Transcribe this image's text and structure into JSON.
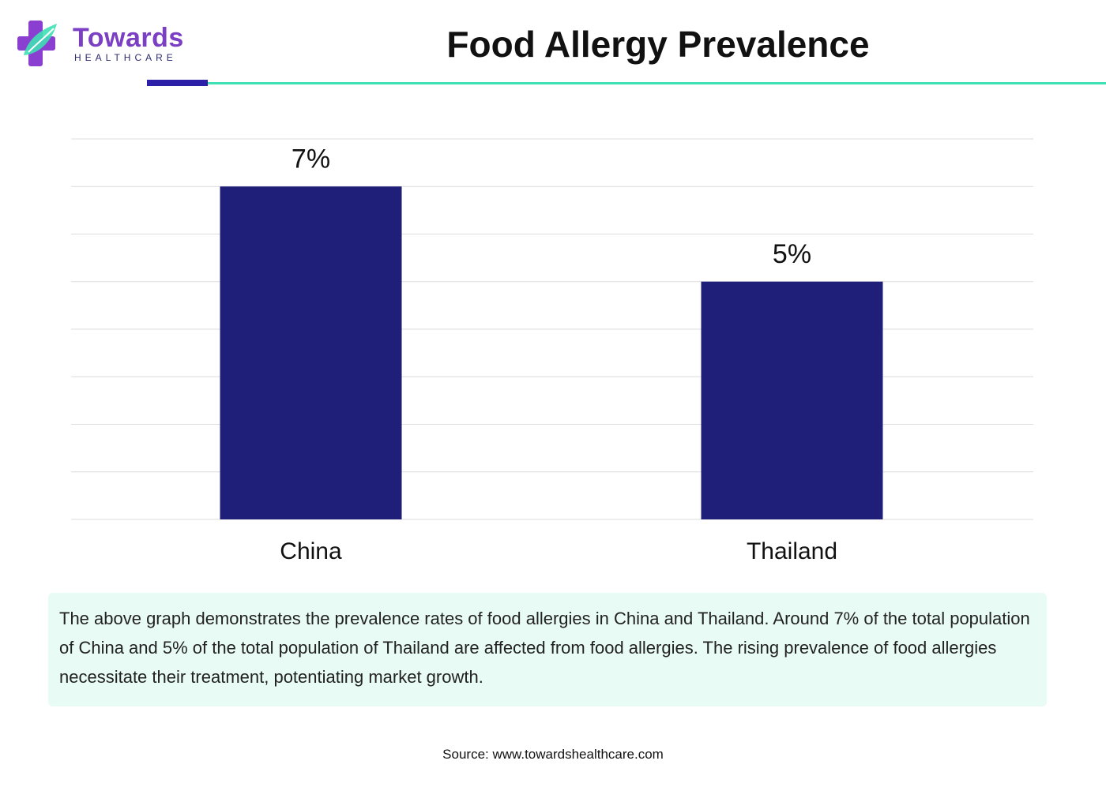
{
  "brand": {
    "name": "Towards",
    "subtitle": "HEALTHCARE",
    "colors": {
      "purple": "#7b3fc4",
      "teal": "#3ee0b4",
      "navy": "#2c1fa8"
    }
  },
  "chart_data": {
    "type": "bar",
    "title": "Food Allergy Prevalence",
    "categories": [
      "China",
      "Thailand"
    ],
    "values": [
      7,
      5
    ],
    "value_labels": [
      "7%",
      "5%"
    ],
    "unit": "%",
    "ylim": [
      0,
      8
    ],
    "grid": true,
    "bar_color": "#1f1f7a",
    "grid_color": "#dcdcdc"
  },
  "description": "The above graph demonstrates the prevalence rates of food allergies in China and Thailand. Around 7% of the total population of China and 5% of the total population of Thailand are affected from food allergies. The rising prevalence of food allergies necessitate their treatment, potentiating market growth.",
  "source": "Source: www.towardshealthcare.com"
}
